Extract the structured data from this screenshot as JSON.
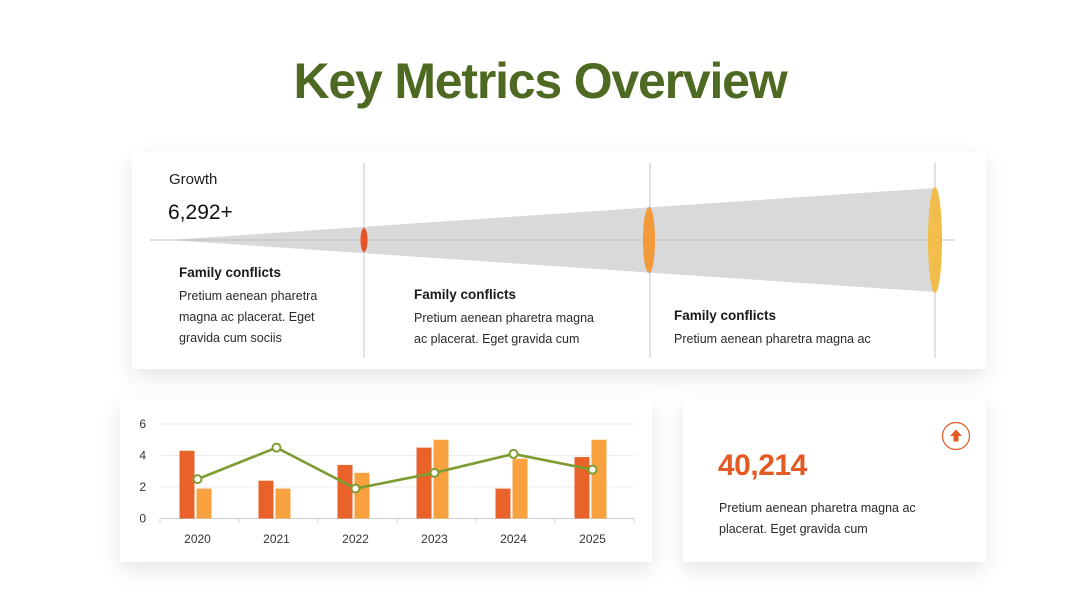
{
  "slide": {
    "title": "Key Metrics Overview"
  },
  "growth": {
    "label": "Growth",
    "value": "6,292+"
  },
  "segments": [
    {
      "title": "Family conflicts",
      "body": [
        "Pretium aenean pharetra",
        "magna ac placerat. Eget",
        "gravida cum sociis"
      ]
    },
    {
      "title": "Family conflicts",
      "body": [
        "Pretium aenean pharetra magna",
        "ac placerat. Eget gravida cum"
      ]
    },
    {
      "title": "Family conflicts",
      "body": [
        "Pretium aenean pharetra magna ac"
      ]
    }
  ],
  "kpi": {
    "value": "40,214",
    "body": [
      "Pretium aenean pharetra magna ac",
      "placerat. Eget gravida cum"
    ],
    "icon": "arrow-up-icon",
    "icon_color": "#e35a24"
  },
  "colors": {
    "title": "#4e6a22",
    "funnel": "#d9d9d9",
    "marker_1": "#e8522a",
    "marker_2": "#f39a3a",
    "marker_3": "#f2bd4a",
    "bar_a": "#e8622a",
    "bar_b": "#f7a23f",
    "line": "#7f9c32"
  },
  "chart_data": {
    "type": "bar",
    "categories": [
      "2020",
      "2021",
      "2022",
      "2023",
      "2024",
      "2025"
    ],
    "series": [
      {
        "type": "bar",
        "values": [
          4.3,
          2.4,
          3.4,
          4.5,
          1.9,
          3.9
        ]
      },
      {
        "type": "bar",
        "values": [
          1.9,
          1.9,
          2.9,
          5.0,
          3.8,
          5.0
        ]
      },
      {
        "type": "line",
        "values": [
          2.5,
          4.5,
          1.9,
          2.9,
          4.1,
          3.1
        ]
      }
    ],
    "yticks": [
      0,
      2,
      4,
      6
    ],
    "ylim": [
      0,
      6
    ],
    "grid": true
  }
}
